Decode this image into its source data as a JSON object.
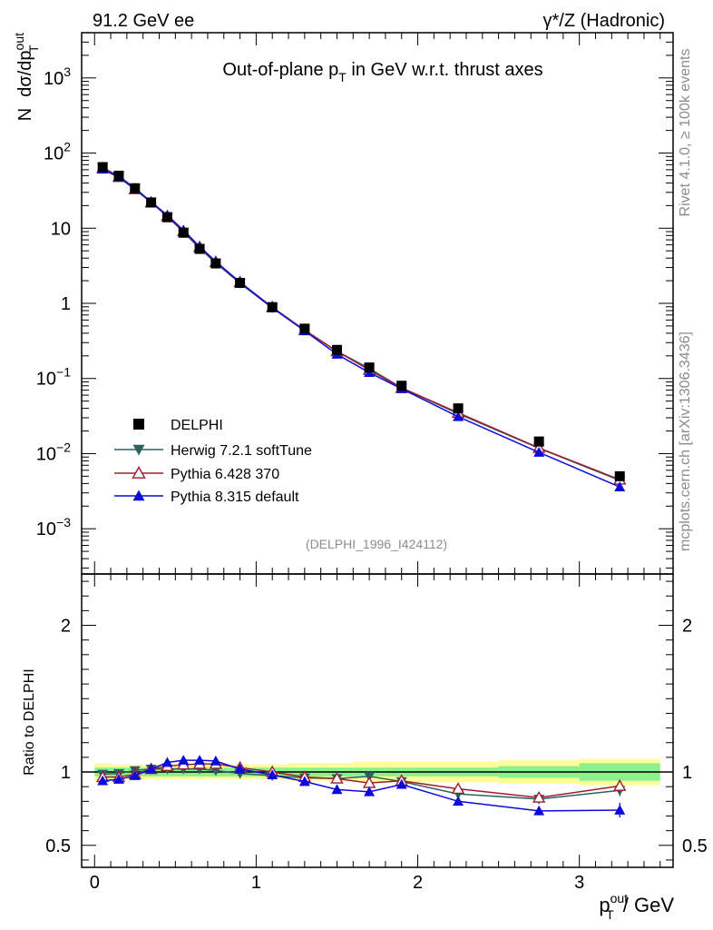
{
  "header": {
    "left": "91.2 GeV ee",
    "right": "γ*/Z (Hadronic)"
  },
  "side": {
    "rivet": "Rivet 4.1.0, ≥ 100k events",
    "mcplots": "mcplots.cern.ch [arXiv:1306.3436]"
  },
  "chart_data": {
    "type": "line",
    "title": "Out-of-plane p_T in GeV w.r.t. thrust axes",
    "title_parts": {
      "pre": "Out-of-plane p",
      "sub": "T",
      "post": " in GeV w.r.t. thrust axes"
    },
    "analysis_tag": "(DELPHI_1996_I424112)",
    "ylabel_parts": {
      "n": "N",
      "d": "dσ/dp",
      "sup": "out",
      "sub": "T"
    },
    "xlabel_parts": {
      "p": "p",
      "sup": "out",
      "sub": "T",
      "unit": " / GeV"
    },
    "ratio_ylabel": "Ratio to DELPHI",
    "xlim": [
      -0.08,
      3.58
    ],
    "ylim": [
      0.00025,
      4000
    ],
    "ratio_ylim": [
      0.35,
      2.35
    ],
    "x_ticks": [
      0,
      1,
      2,
      3
    ],
    "x_tick_labels": [
      "0",
      "1",
      "2",
      "3"
    ],
    "y_tick_labels": [
      {
        "v": 1000,
        "base": "10",
        "exp": "3"
      },
      {
        "v": 100,
        "base": "10",
        "exp": "2"
      },
      {
        "v": 10,
        "base": "10",
        "exp": ""
      },
      {
        "v": 1,
        "base": "1",
        "exp": ""
      },
      {
        "v": 0.1,
        "base": "10",
        "exp": "−1"
      },
      {
        "v": 0.01,
        "base": "10",
        "exp": "−2"
      },
      {
        "v": 0.001,
        "base": "10",
        "exp": "−3"
      }
    ],
    "ratio_ticks": [
      0.5,
      1,
      2
    ],
    "ratio_tick_labels": [
      "0.5",
      "1",
      "2"
    ],
    "x": [
      0.05,
      0.15,
      0.25,
      0.35,
      0.45,
      0.55,
      0.65,
      0.75,
      0.9,
      1.1,
      1.3,
      1.5,
      1.7,
      1.9,
      2.25,
      2.75,
      3.25
    ],
    "bin_edges": [
      0,
      0.1,
      0.2,
      0.3,
      0.4,
      0.5,
      0.6,
      0.7,
      0.8,
      1.0,
      1.2,
      1.4,
      1.6,
      1.8,
      2.0,
      2.5,
      3.0,
      3.5
    ],
    "band_inner": [
      0.03,
      0.03,
      0.03,
      0.03,
      0.03,
      0.03,
      0.03,
      0.03,
      0.03,
      0.03,
      0.03,
      0.03,
      0.03,
      0.03,
      0.03,
      0.04,
      0.06
    ],
    "band_outer": [
      0.06,
      0.05,
      0.05,
      0.05,
      0.05,
      0.05,
      0.05,
      0.05,
      0.05,
      0.05,
      0.06,
      0.06,
      0.07,
      0.07,
      0.07,
      0.08,
      0.09
    ],
    "series": [
      {
        "name": "DELPHI",
        "color": "#000000",
        "marker": "square",
        "values": [
          65,
          50,
          34,
          22,
          14,
          8.7,
          5.3,
          3.4,
          1.87,
          0.89,
          0.46,
          0.24,
          0.14,
          0.08,
          0.04,
          0.0145,
          0.005
        ],
        "ratio": [
          1,
          1,
          1,
          1,
          1,
          1,
          1,
          1,
          1,
          1,
          1,
          1,
          1,
          1,
          1,
          1,
          1
        ]
      },
      {
        "name": "Herwig 7.2.1 softTune",
        "color": "#2c6161",
        "marker": "tri-down",
        "values": [
          64,
          49.5,
          34.3,
          22.4,
          14.3,
          8.9,
          5.4,
          3.44,
          1.85,
          0.87,
          0.44,
          0.23,
          0.136,
          0.075,
          0.034,
          0.0118,
          0.0044
        ],
        "ratio": [
          0.985,
          0.99,
          1.01,
          1.02,
          1.02,
          1.02,
          1.02,
          1.01,
          0.99,
          0.975,
          0.96,
          0.955,
          0.97,
          0.935,
          0.85,
          0.815,
          0.875
        ],
        "ratio_err": [
          0.01,
          0.01,
          0.01,
          0.01,
          0.01,
          0.01,
          0.01,
          0.01,
          0.01,
          0.01,
          0.01,
          0.015,
          0.015,
          0.02,
          0.02,
          0.03,
          0.04
        ]
      },
      {
        "name": "Pythia 6.428 370",
        "color": "#9e1c2e",
        "marker": "tri-up-open",
        "values": [
          63,
          48,
          33,
          22,
          14.4,
          9.1,
          5.6,
          3.55,
          1.91,
          0.89,
          0.44,
          0.23,
          0.13,
          0.075,
          0.035,
          0.0119,
          0.0045
        ],
        "ratio": [
          0.965,
          0.965,
          0.985,
          1.02,
          1.04,
          1.05,
          1.055,
          1.055,
          1.03,
          1.0,
          0.965,
          0.955,
          0.925,
          0.94,
          0.885,
          0.825,
          0.905
        ],
        "ratio_err": [
          0.01,
          0.01,
          0.01,
          0.01,
          0.01,
          0.01,
          0.01,
          0.01,
          0.01,
          0.01,
          0.01,
          0.015,
          0.015,
          0.02,
          0.02,
          0.03,
          0.04
        ]
      },
      {
        "name": "Pythia 8.315 default",
        "color": "#0a0adc",
        "marker": "tri-up",
        "values": [
          61,
          47.5,
          33.2,
          22.4,
          14.9,
          9.4,
          5.7,
          3.6,
          1.91,
          0.87,
          0.43,
          0.21,
          0.12,
          0.073,
          0.031,
          0.0104,
          0.0036
        ],
        "ratio": [
          0.94,
          0.95,
          0.975,
          1.02,
          1.065,
          1.08,
          1.08,
          1.075,
          1.02,
          0.98,
          0.935,
          0.88,
          0.865,
          0.915,
          0.8,
          0.735,
          0.74
        ],
        "ratio_err": [
          0.01,
          0.01,
          0.01,
          0.01,
          0.01,
          0.01,
          0.01,
          0.01,
          0.01,
          0.01,
          0.01,
          0.015,
          0.015,
          0.02,
          0.02,
          0.03,
          0.05
        ]
      }
    ]
  }
}
